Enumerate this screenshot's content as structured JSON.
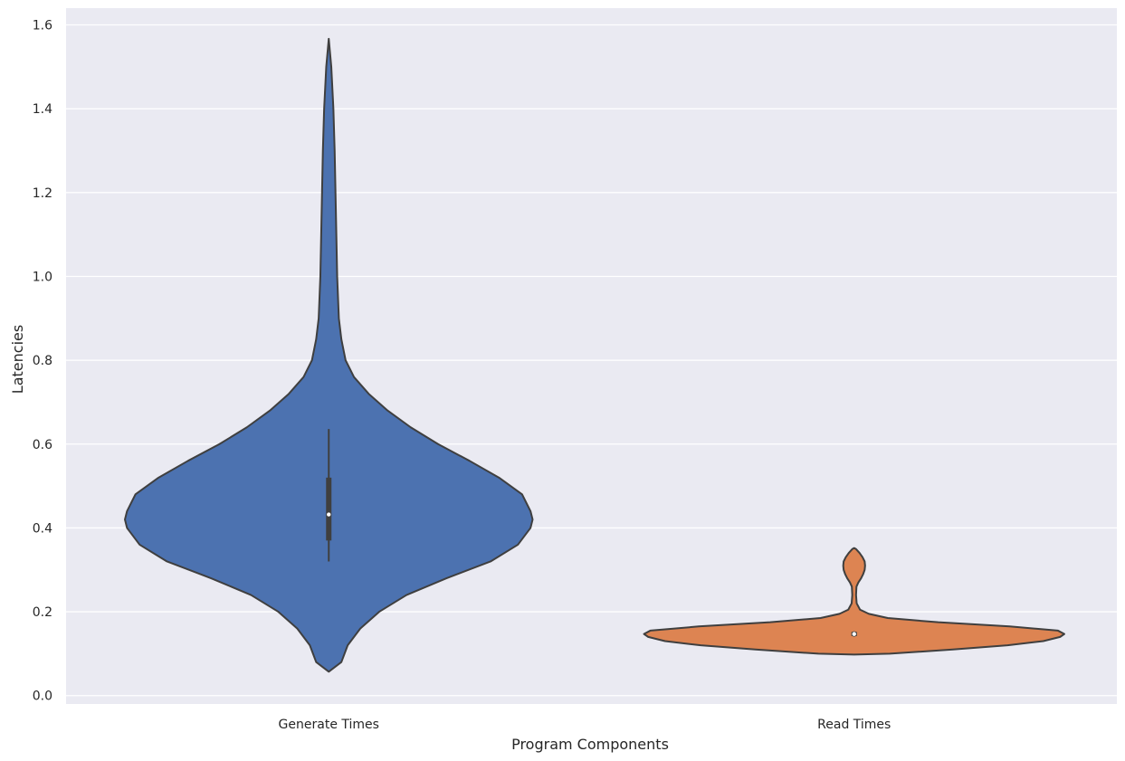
{
  "chart_data": {
    "type": "violin",
    "title": "",
    "xlabel": "Program Components",
    "ylabel": "Latencies",
    "ylim": [
      -0.02,
      1.64
    ],
    "yticks": [
      0.0,
      0.2,
      0.4,
      0.6,
      0.8,
      1.0,
      1.2,
      1.4,
      1.6
    ],
    "ytick_labels": [
      "0.0",
      "0.2",
      "0.4",
      "0.6",
      "0.8",
      "1.0",
      "1.2",
      "1.4",
      "1.6"
    ],
    "grid": true,
    "legend": "none",
    "categories": [
      "Generate Times",
      "Read Times"
    ],
    "series": [
      {
        "category": "Generate Times",
        "color": "#4c72b0",
        "min": 0.057,
        "max": 1.567,
        "q1": 0.37,
        "median": 0.432,
        "q3": 0.52,
        "whisker_low": 0.32,
        "whisker_high": 0.636,
        "density": [
          [
            0.057,
            0.0
          ],
          [
            0.08,
            0.06
          ],
          [
            0.12,
            0.09
          ],
          [
            0.16,
            0.15
          ],
          [
            0.2,
            0.24
          ],
          [
            0.24,
            0.37
          ],
          [
            0.28,
            0.56
          ],
          [
            0.32,
            0.77
          ],
          [
            0.36,
            0.9
          ],
          [
            0.4,
            0.96
          ],
          [
            0.42,
            0.97
          ],
          [
            0.44,
            0.96
          ],
          [
            0.48,
            0.92
          ],
          [
            0.52,
            0.81
          ],
          [
            0.56,
            0.67
          ],
          [
            0.6,
            0.52
          ],
          [
            0.64,
            0.39
          ],
          [
            0.68,
            0.28
          ],
          [
            0.72,
            0.19
          ],
          [
            0.76,
            0.12
          ],
          [
            0.8,
            0.08
          ],
          [
            0.85,
            0.06
          ],
          [
            0.9,
            0.048
          ],
          [
            1.0,
            0.04
          ],
          [
            1.1,
            0.036
          ],
          [
            1.2,
            0.032
          ],
          [
            1.3,
            0.028
          ],
          [
            1.4,
            0.022
          ],
          [
            1.5,
            0.012
          ],
          [
            1.567,
            0.0
          ]
        ]
      },
      {
        "category": "Read Times",
        "color": "#dd8452",
        "min": 0.098,
        "max": 0.352,
        "q1": 0.142,
        "median": 0.147,
        "q3": 0.152,
        "whisker_low": 0.142,
        "whisker_high": 0.152,
        "density": [
          [
            0.098,
            0.0
          ],
          [
            0.1,
            0.17
          ],
          [
            0.11,
            0.47
          ],
          [
            0.12,
            0.73
          ],
          [
            0.13,
            0.9
          ],
          [
            0.14,
            0.98
          ],
          [
            0.147,
            1.0
          ],
          [
            0.155,
            0.97
          ],
          [
            0.165,
            0.74
          ],
          [
            0.175,
            0.4
          ],
          [
            0.185,
            0.16
          ],
          [
            0.195,
            0.07
          ],
          [
            0.205,
            0.028
          ],
          [
            0.22,
            0.012
          ],
          [
            0.24,
            0.009
          ],
          [
            0.26,
            0.011
          ],
          [
            0.27,
            0.02
          ],
          [
            0.28,
            0.033
          ],
          [
            0.29,
            0.043
          ],
          [
            0.3,
            0.05
          ],
          [
            0.31,
            0.052
          ],
          [
            0.32,
            0.05
          ],
          [
            0.33,
            0.04
          ],
          [
            0.34,
            0.026
          ],
          [
            0.35,
            0.008
          ],
          [
            0.352,
            0.0
          ]
        ]
      }
    ]
  }
}
